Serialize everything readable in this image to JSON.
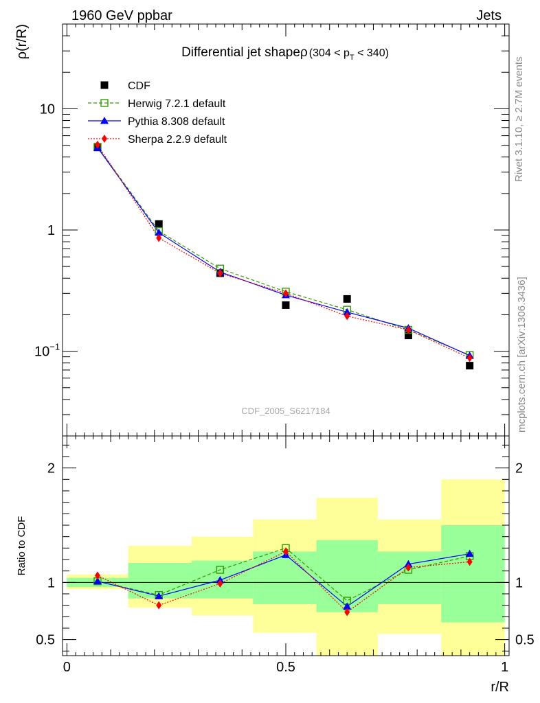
{
  "header": {
    "left": "1960 GeV ppbar",
    "right": "Jets"
  },
  "side_labels": {
    "top": "Rivet 3.1.10, ≥ 2.7M events",
    "bottom": "mcplots.cern.ch [arXiv:1306.3436]"
  },
  "chart_data": [
    {
      "type": "line",
      "title": "Differential jet shapeρ",
      "title_suffix": "(304 < p",
      "title_sub": "T",
      "title_end": " < 340)",
      "ylabel": "ρ(r/R)",
      "xlabel": "r/R",
      "yscale": "log",
      "xlim": [
        -0.01,
        1.01
      ],
      "ylim": [
        0.02,
        50
      ],
      "yticks": [
        {
          "value": 10,
          "label": "10"
        },
        {
          "value": 1,
          "label": "1"
        },
        {
          "value": 0.1,
          "label": "10",
          "sup": "−1"
        }
      ],
      "watermark": "CDF_2005_S6217184",
      "legend_position": "top-left",
      "x": [
        0.07,
        0.21,
        0.35,
        0.5,
        0.64,
        0.78,
        0.92
      ],
      "series": [
        {
          "name": "CDF",
          "style": "data",
          "color": "#000000",
          "values": [
            4.8,
            1.12,
            0.44,
            0.24,
            0.27,
            0.135,
            0.076
          ]
        },
        {
          "name": "Herwig 7.2.1 default",
          "style": "herwig",
          "color": "#339900",
          "values": [
            4.85,
            0.98,
            0.48,
            0.31,
            0.22,
            0.15,
            0.093
          ]
        },
        {
          "name": "Pythia 8.308 default",
          "style": "pythia",
          "color": "#0000ff",
          "values": [
            4.78,
            0.95,
            0.45,
            0.29,
            0.21,
            0.155,
            0.092
          ]
        },
        {
          "name": "Sherpa 2.2.9 default",
          "style": "sherpa",
          "color": "#ff0000",
          "values": [
            5.05,
            0.86,
            0.44,
            0.3,
            0.195,
            0.15,
            0.088
          ]
        }
      ]
    },
    {
      "type": "line",
      "ylabel": "Ratio to CDF",
      "xlabel": "r/R",
      "ylim": [
        0.36,
        2.28
      ],
      "xticks": [
        {
          "value": 0,
          "label": "0"
        },
        {
          "value": 0.5,
          "label": "0.5"
        },
        {
          "value": 1,
          "label": "1"
        }
      ],
      "yticks": [
        {
          "value": 0.5,
          "label": "0.5"
        },
        {
          "value": 1,
          "label": "1"
        },
        {
          "value": 2,
          "label": "2"
        }
      ],
      "reference_line": 1,
      "bands": [
        {
          "x0": 0.0,
          "x1": 0.14,
          "yellow": [
            0.94,
            1.07
          ],
          "green": [
            0.96,
            1.04
          ]
        },
        {
          "x0": 0.14,
          "x1": 0.285,
          "yellow": [
            0.78,
            1.32
          ],
          "green": [
            0.86,
            1.17
          ]
        },
        {
          "x0": 0.285,
          "x1": 0.425,
          "yellow": [
            0.71,
            1.4
          ],
          "green": [
            0.86,
            1.19
          ]
        },
        {
          "x0": 0.425,
          "x1": 0.57,
          "yellow": [
            0.56,
            1.55
          ],
          "green": [
            0.81,
            1.27
          ]
        },
        {
          "x0": 0.57,
          "x1": 0.71,
          "yellow": [
            0.36,
            1.74
          ],
          "green": [
            0.74,
            1.37
          ]
        },
        {
          "x0": 0.71,
          "x1": 0.855,
          "yellow": [
            0.55,
            1.55
          ],
          "green": [
            0.81,
            1.27
          ]
        },
        {
          "x0": 0.855,
          "x1": 1.0,
          "yellow": [
            0.36,
            1.9
          ],
          "green": [
            0.65,
            1.5
          ]
        }
      ],
      "x": [
        0.07,
        0.21,
        0.35,
        0.5,
        0.64,
        0.78,
        0.92
      ],
      "series": [
        {
          "name": "Herwig 7.2.1 default",
          "style": "herwig",
          "color": "#339900",
          "values": [
            1.01,
            0.89,
            1.11,
            1.3,
            0.84,
            1.11,
            1.23
          ]
        },
        {
          "name": "Pythia 8.308 default",
          "style": "pythia",
          "color": "#0000ff",
          "values": [
            1.01,
            0.88,
            1.02,
            1.24,
            0.79,
            1.16,
            1.25
          ]
        },
        {
          "name": "Sherpa 2.2.9 default",
          "style": "sherpa",
          "color": "#ff0000",
          "values": [
            1.06,
            0.8,
            0.99,
            1.27,
            0.74,
            1.13,
            1.18
          ]
        }
      ]
    }
  ]
}
